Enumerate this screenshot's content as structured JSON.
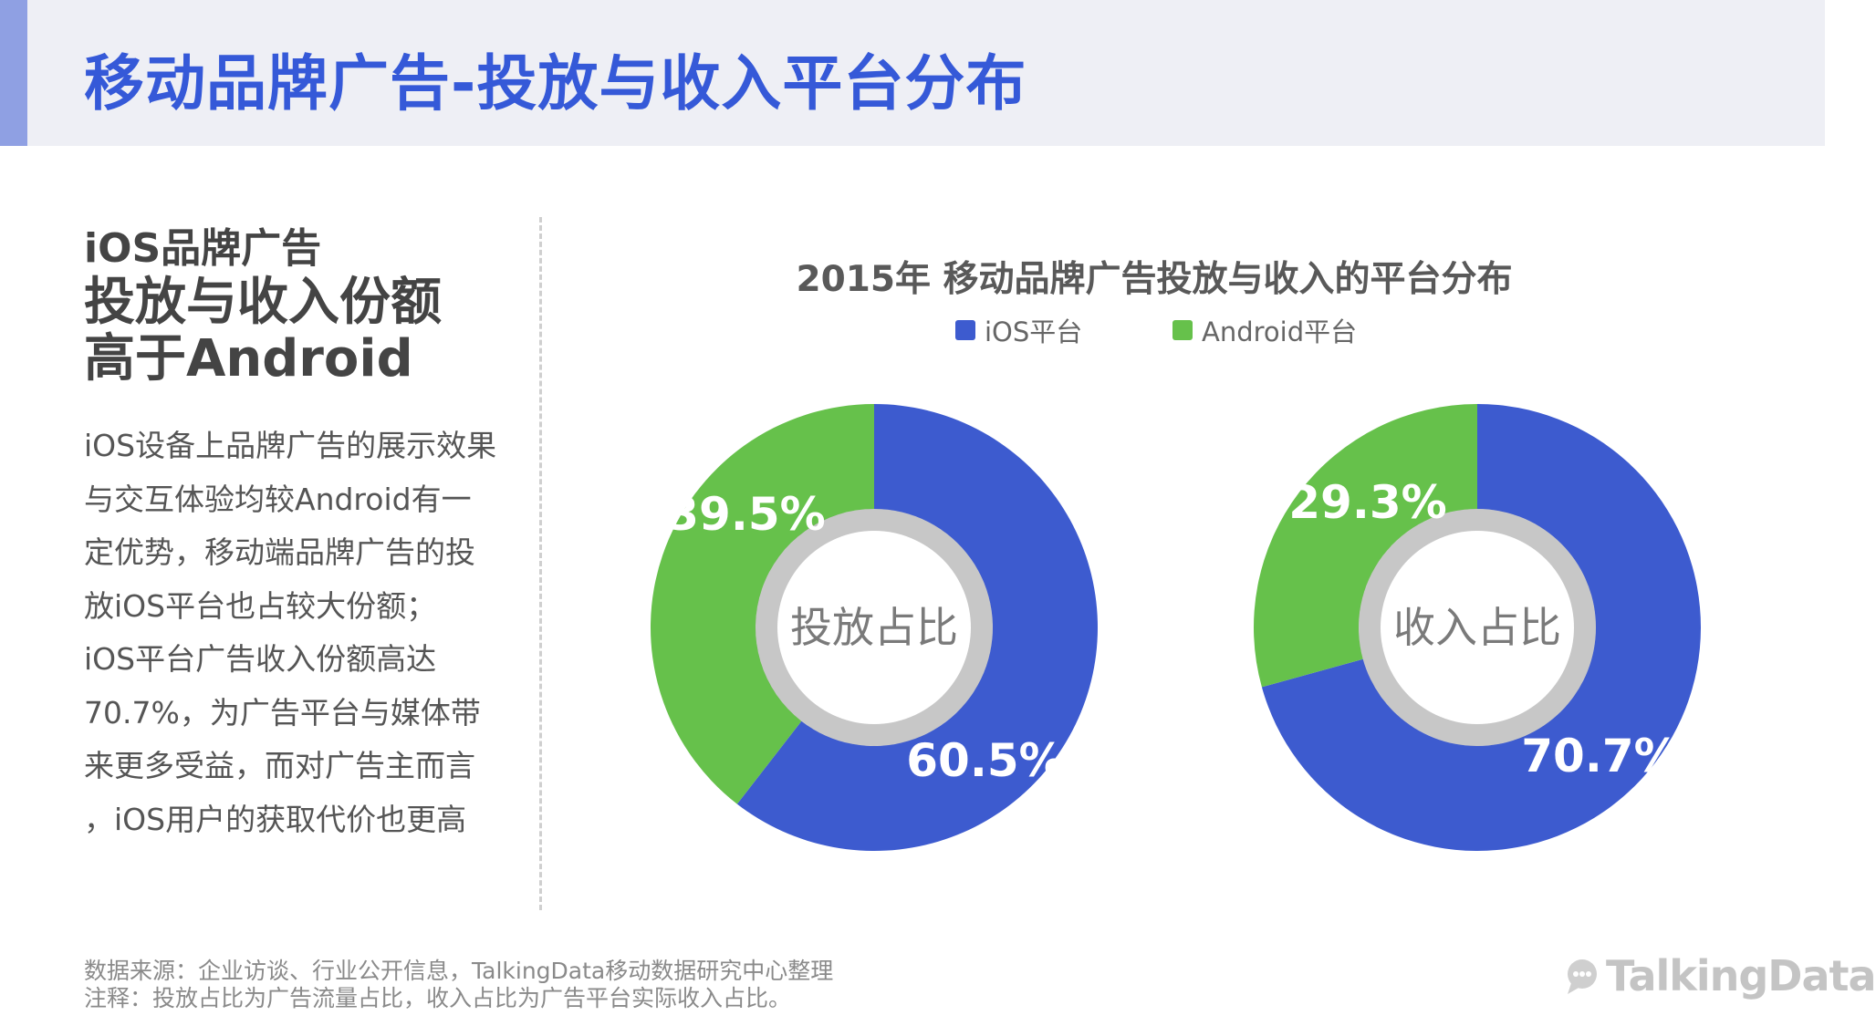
{
  "page": {
    "title": "移动品牌广告-投放与收入平台分布",
    "left": {
      "heading": [
        "iOS品牌广告",
        "投放与收入份额",
        "高于Android"
      ],
      "body": [
        "iOS设备上品牌广告的展示效果",
        "与交互体验均较Android有一",
        "定优势，移动端品牌广告的投",
        "放iOS平台也占较大份额；",
        "iOS平台广告收入份额高达",
        "70.7%，为广告平台与媒体带",
        "来更多受益，而对广告主而言",
        "，iOS用户的获取代价也更高"
      ]
    },
    "footer": {
      "source": "数据来源：企业访谈、行业公开信息，TalkingData移动数据研究中心整理",
      "note": "注释：投放占比为广告流量占比，收入占比为广告平台实际收入占比。"
    },
    "logo": "TalkingData",
    "colors": {
      "ios": "#3d5bcf",
      "android": "#66c14b",
      "accent": "#3559d8",
      "header_bg": "#eeeff5"
    }
  },
  "chart_data": {
    "type": "pie",
    "variant": "donut",
    "title": "2015年 移动品牌广告投放与收入的平台分布",
    "legend": [
      "iOS平台",
      "Android平台"
    ],
    "legend_position": "top",
    "charts": [
      {
        "center_label": "投放占比",
        "slices": [
          {
            "name": "iOS平台",
            "value": 60.5,
            "label": "60.5%"
          },
          {
            "name": "Android平台",
            "value": 39.5,
            "label": "39.5%"
          }
        ]
      },
      {
        "center_label": "收入占比",
        "slices": [
          {
            "name": "iOS平台",
            "value": 70.7,
            "label": "70.7%"
          },
          {
            "name": "Android平台",
            "value": 29.3,
            "label": "29.3%"
          }
        ]
      }
    ]
  }
}
